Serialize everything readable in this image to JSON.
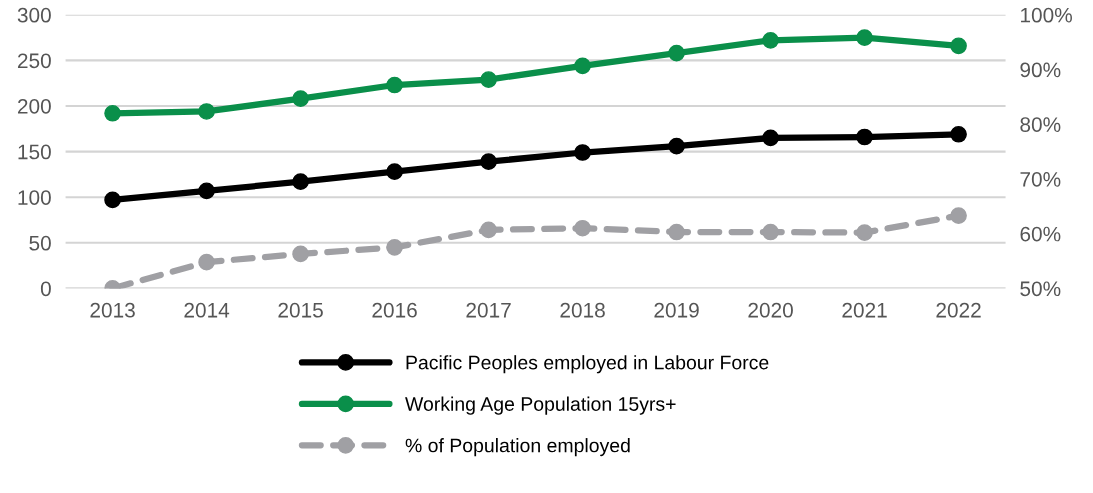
{
  "chart_data": {
    "type": "line",
    "categories": [
      "2013",
      "2014",
      "2015",
      "2016",
      "2017",
      "2018",
      "2019",
      "2020",
      "2021",
      "2022"
    ],
    "series": [
      {
        "name": "Pacific Peoples employed in Labour Force",
        "color": "#000000",
        "values": [
          97,
          107,
          117,
          128,
          139,
          149,
          156,
          165,
          166,
          169
        ]
      },
      {
        "name": "Working Age Population 15yrs+",
        "color": "#0a8f4a",
        "values": [
          192,
          194,
          208,
          223,
          229,
          244,
          258,
          272,
          275,
          266
        ]
      },
      {
        "name": "% of Population employed",
        "color": "#a0a0a4",
        "axis": "y2",
        "line_style": "dashed",
        "values": [
          50.0,
          54.8,
          56.3,
          57.5,
          60.7,
          61.0,
          60.3,
          60.3,
          60.2,
          63.3
        ]
      }
    ],
    "ylim": [
      0,
      300
    ],
    "yticks": [
      0,
      50,
      100,
      150,
      200,
      250,
      300
    ],
    "y2lim": [
      50,
      100
    ],
    "y2ticks": [
      {
        "value": 50,
        "label": "50%"
      },
      {
        "value": 60,
        "label": "60%"
      },
      {
        "value": 70,
        "label": "70%"
      },
      {
        "value": 80,
        "label": "80%"
      },
      {
        "value": 90,
        "label": "90%"
      },
      {
        "value": 100,
        "label": "100%"
      }
    ],
    "grid": "y",
    "legend": "bottom",
    "marker": "circle",
    "line_style": "solid"
  }
}
